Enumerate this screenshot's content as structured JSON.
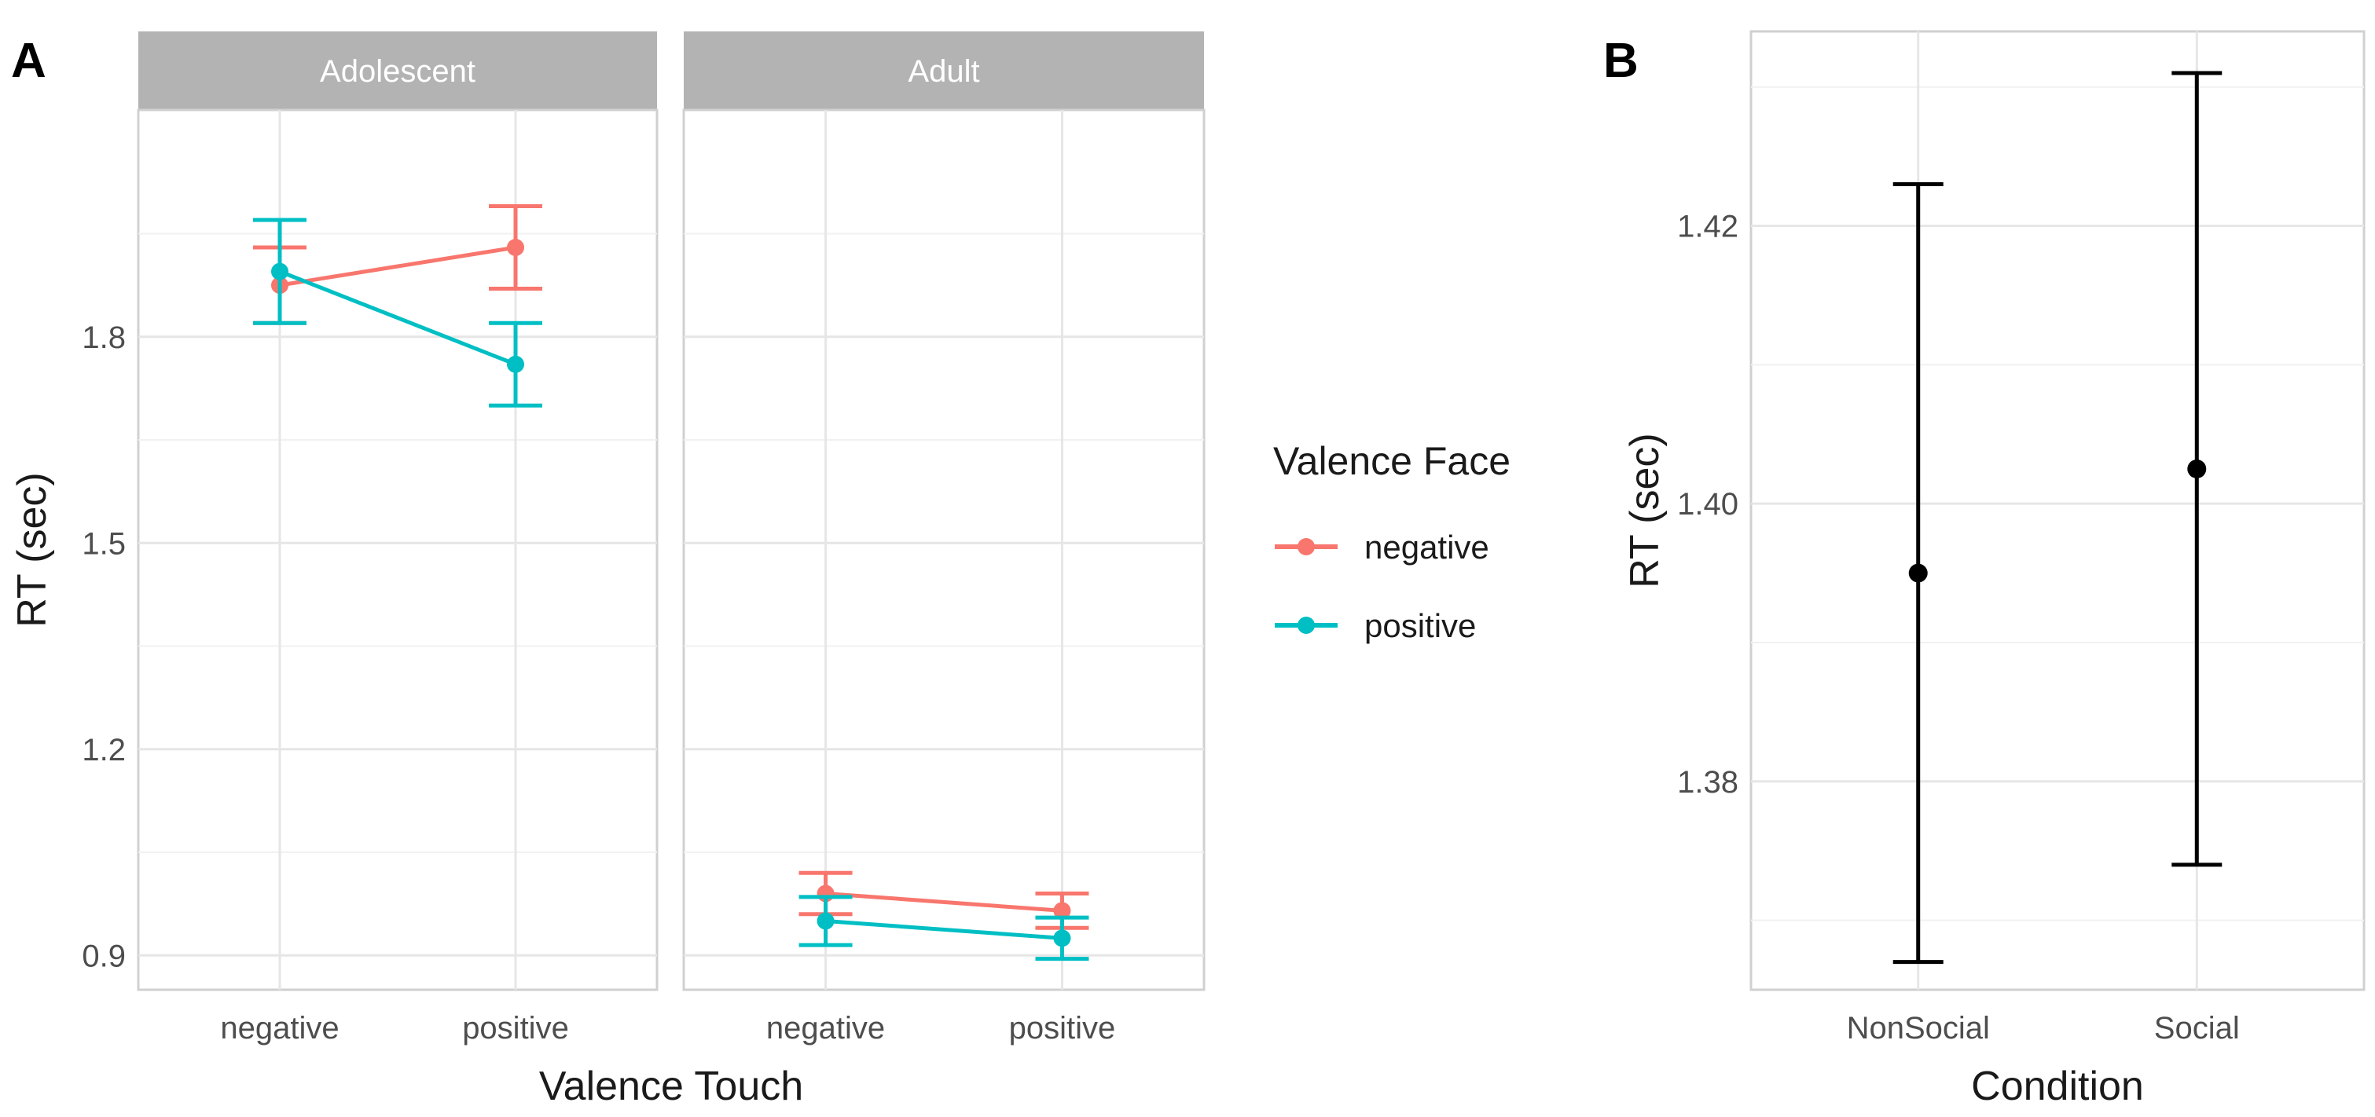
{
  "colors": {
    "negative": "#F8766D",
    "positive": "#00BFC4",
    "panel_b": "#000000"
  },
  "chart_data": [
    {
      "panel_tag": "A",
      "type": "line",
      "facets": [
        "Adolescent",
        "Adult"
      ],
      "categories": [
        "negative",
        "positive"
      ],
      "xlabel": "Valence Touch",
      "ylabel": "RT (sec)",
      "ylim": [
        0.85,
        2.13
      ],
      "yticks": [
        0.9,
        1.2,
        1.5,
        1.8
      ],
      "ytick_labels": [
        "0.9",
        "1.2",
        "1.5",
        "1.8"
      ],
      "grid": true,
      "legend": {
        "title": "Valence Face",
        "placement": "right"
      },
      "series": [
        {
          "name": "negative",
          "data": {
            "Adolescent": [
              {
                "x": "negative",
                "y": 1.875,
                "lo": 1.82,
                "hi": 1.93
              },
              {
                "x": "positive",
                "y": 1.93,
                "lo": 1.87,
                "hi": 1.99
              }
            ],
            "Adult": [
              {
                "x": "negative",
                "y": 0.99,
                "lo": 0.96,
                "hi": 1.02
              },
              {
                "x": "positive",
                "y": 0.965,
                "lo": 0.94,
                "hi": 0.99
              }
            ]
          }
        },
        {
          "name": "positive",
          "data": {
            "Adolescent": [
              {
                "x": "negative",
                "y": 1.895,
                "lo": 1.82,
                "hi": 1.97
              },
              {
                "x": "positive",
                "y": 1.76,
                "lo": 1.7,
                "hi": 1.82
              }
            ],
            "Adult": [
              {
                "x": "negative",
                "y": 0.95,
                "lo": 0.915,
                "hi": 0.985
              },
              {
                "x": "positive",
                "y": 0.925,
                "lo": 0.895,
                "hi": 0.955
              }
            ]
          }
        }
      ]
    },
    {
      "panel_tag": "B",
      "type": "scatter",
      "categories": [
        "NonSocial",
        "Social"
      ],
      "xlabel": "Condition",
      "ylabel": "RT (sec)",
      "ylim": [
        1.365,
        1.434
      ],
      "yticks": [
        1.38,
        1.4,
        1.42
      ],
      "ytick_labels": [
        "1.38",
        "1.40",
        "1.42"
      ],
      "grid": true,
      "points": [
        {
          "x": "NonSocial",
          "y": 1.395,
          "lo": 1.367,
          "hi": 1.423
        },
        {
          "x": "Social",
          "y": 1.4025,
          "lo": 1.374,
          "hi": 1.431
        }
      ]
    }
  ]
}
